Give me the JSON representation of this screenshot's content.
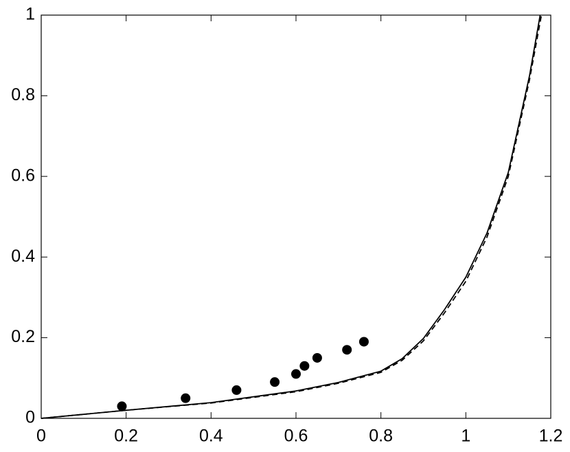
{
  "chart_data": {
    "type": "line",
    "xlim": [
      0,
      1.2
    ],
    "ylim": [
      0,
      1
    ],
    "xticks": [
      0,
      0.2,
      0.4,
      0.6,
      0.8,
      1,
      1.2
    ],
    "yticks": [
      0,
      0.2,
      0.4,
      0.6,
      0.8,
      1
    ],
    "series": [
      {
        "type": "line",
        "color": "#000000",
        "dashed": false,
        "x": [
          0,
          0.2,
          0.4,
          0.6,
          0.7,
          0.8,
          0.85,
          0.9,
          0.95,
          1.0,
          1.05,
          1.1,
          1.15,
          1.175
        ],
        "values": [
          0,
          0.02,
          0.039,
          0.068,
          0.089,
          0.117,
          0.148,
          0.198,
          0.27,
          0.35,
          0.46,
          0.61,
          0.85,
          1
        ]
      },
      {
        "type": "line",
        "color": "#000000",
        "dashed": true,
        "x": [
          0,
          0.2,
          0.4,
          0.6,
          0.7,
          0.8,
          0.85,
          0.9,
          0.95,
          1.0,
          1.05,
          1.1,
          1.15,
          1.178
        ],
        "values": [
          0,
          0.02,
          0.038,
          0.066,
          0.087,
          0.114,
          0.144,
          0.192,
          0.262,
          0.34,
          0.45,
          0.6,
          0.84,
          1
        ]
      },
      {
        "type": "scatter",
        "color": "#000000",
        "x": [
          0.19,
          0.34,
          0.46,
          0.55,
          0.6,
          0.62,
          0.65,
          0.72,
          0.76
        ],
        "values": [
          0.03,
          0.05,
          0.07,
          0.09,
          0.11,
          0.13,
          0.15,
          0.17,
          0.19
        ]
      }
    ]
  }
}
